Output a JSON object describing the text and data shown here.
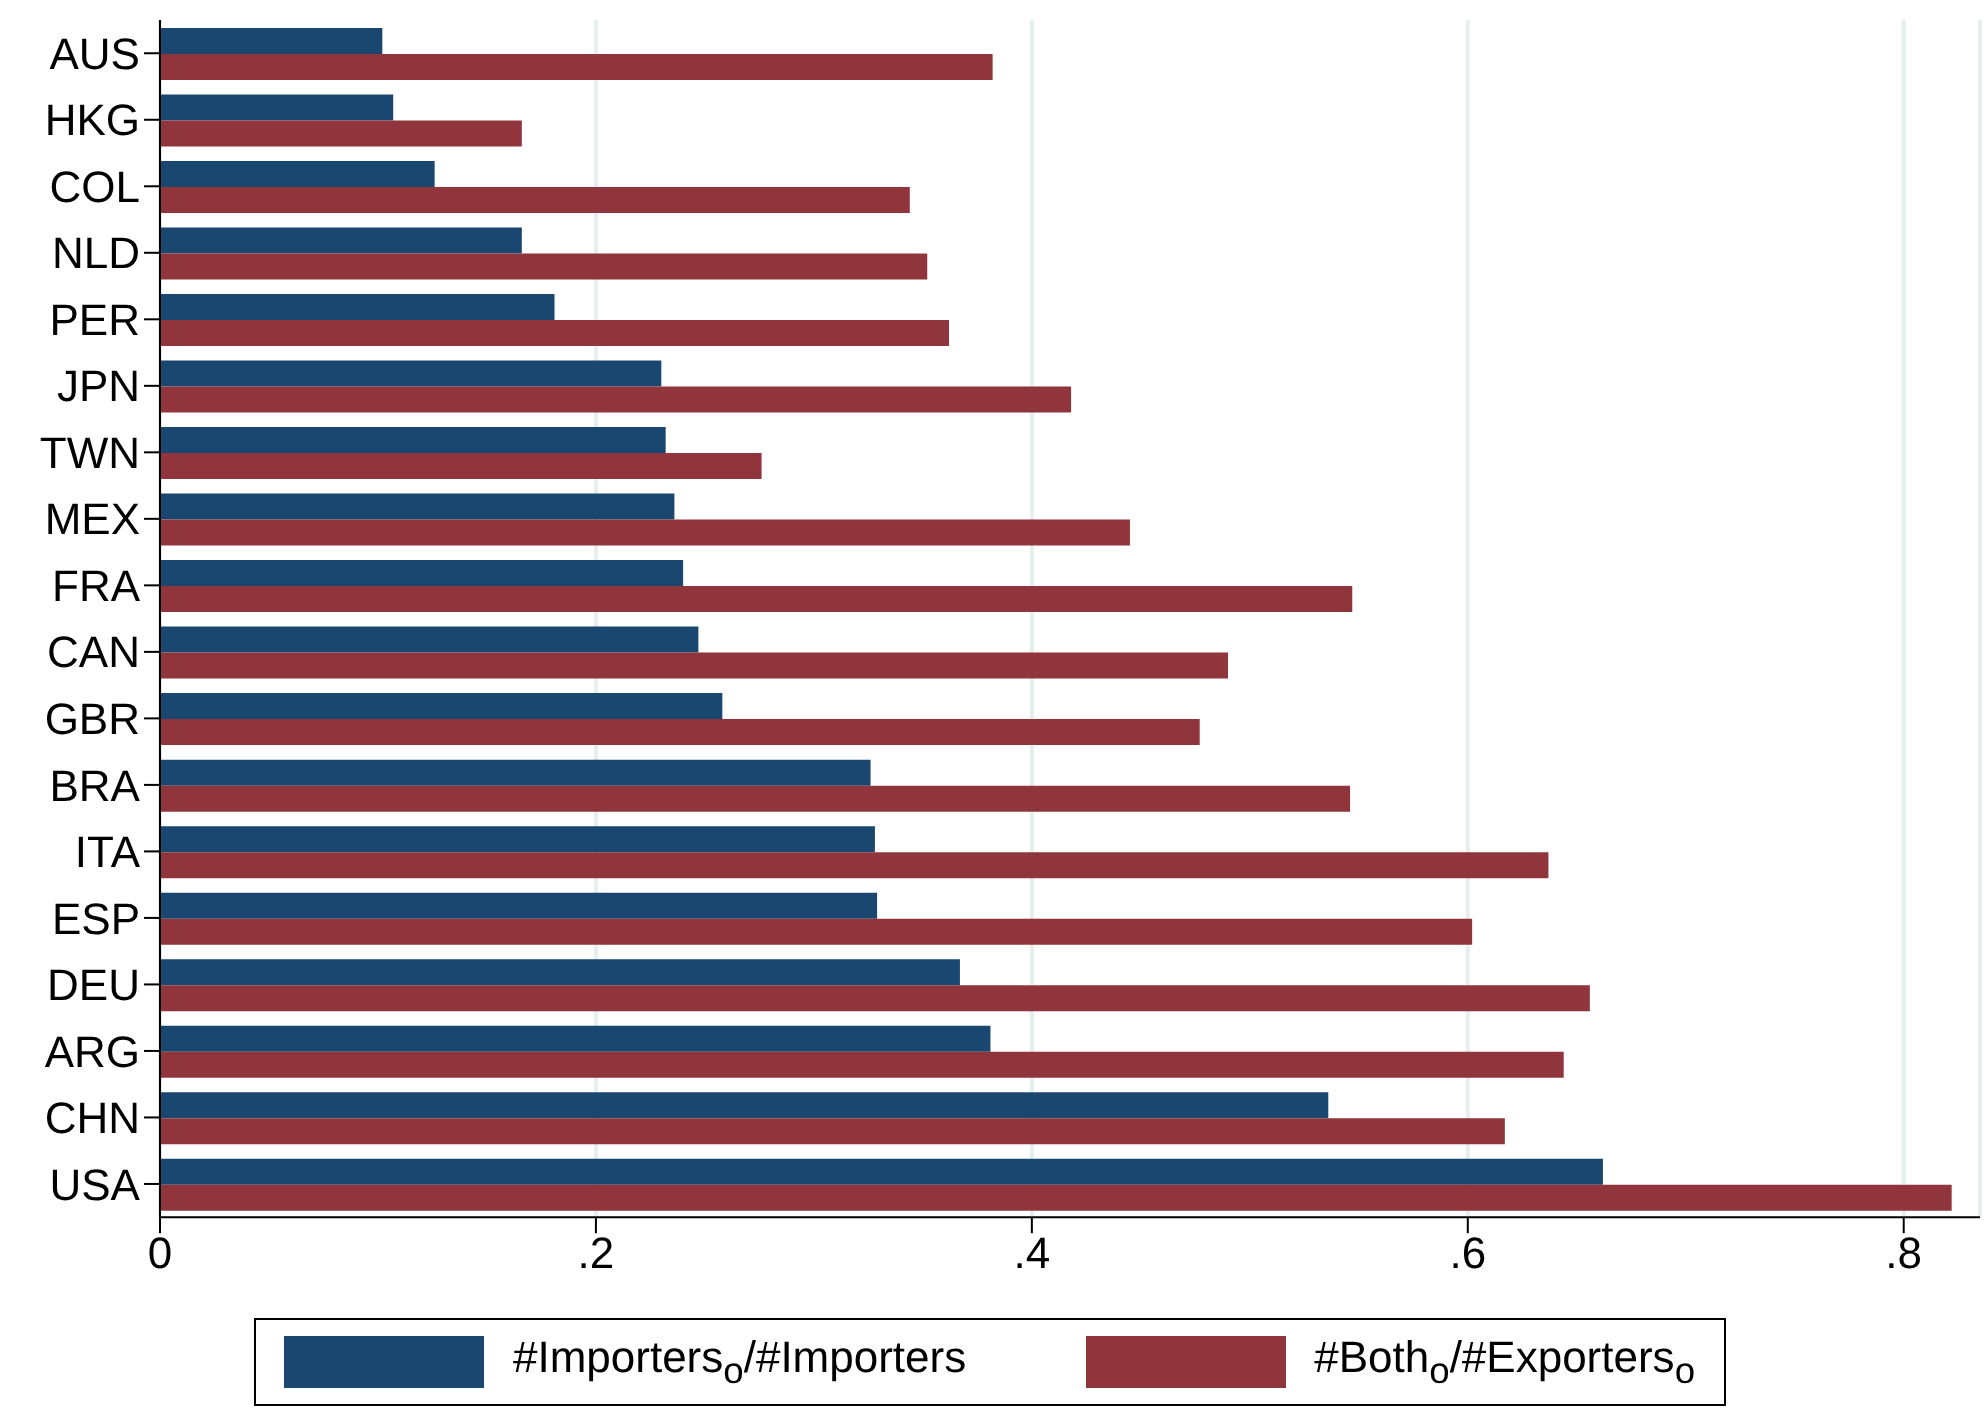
{
  "chart_data": {
    "type": "bar",
    "orientation": "horizontal",
    "categories": [
      "AUS",
      "HKG",
      "COL",
      "NLD",
      "PER",
      "JPN",
      "TWN",
      "MEX",
      "FRA",
      "CAN",
      "GBR",
      "BRA",
      "ITA",
      "ESP",
      "DEU",
      "ARG",
      "CHN",
      "USA"
    ],
    "series": [
      {
        "name": "#Importers$_{o}$/#Importers",
        "color": "#1a476f",
        "values": [
          0.102,
          0.107,
          0.126,
          0.166,
          0.181,
          0.23,
          0.232,
          0.236,
          0.24,
          0.247,
          0.258,
          0.326,
          0.328,
          0.329,
          0.367,
          0.381,
          0.536,
          0.662
        ]
      },
      {
        "name": "#Both$_{o}$/#Exporters$_{o}$",
        "color": "#90353b",
        "values": [
          0.382,
          0.166,
          0.344,
          0.352,
          0.362,
          0.418,
          0.276,
          0.445,
          0.547,
          0.49,
          0.477,
          0.546,
          0.637,
          0.602,
          0.656,
          0.644,
          0.617,
          0.822
        ]
      }
    ],
    "xlim": [
      0,
      0.835
    ],
    "xticks": [
      {
        "value": 0,
        "label": "0"
      },
      {
        "value": 0.2,
        "label": ".2"
      },
      {
        "value": 0.4,
        "label": ".4"
      },
      {
        "value": 0.6,
        "label": ".6"
      },
      {
        "value": 0.8,
        "label": ".8"
      }
    ],
    "grid": "x",
    "legend": "bottom"
  }
}
